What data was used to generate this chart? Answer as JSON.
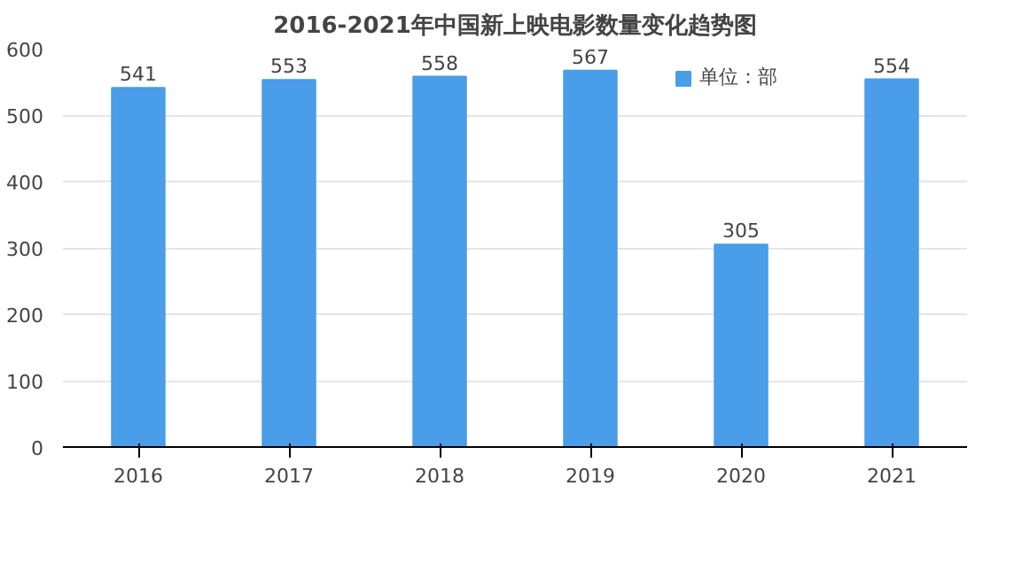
{
  "chart_data": {
    "type": "bar",
    "title": "2016-2021年中国新上映电影数量变化趋势图",
    "categories": [
      "2016",
      "2017",
      "2018",
      "2019",
      "2020",
      "2021"
    ],
    "series": [
      {
        "name": "单位：部",
        "color": "#4a9de8",
        "values": [
          541,
          553,
          558,
          567,
          305,
          554
        ]
      }
    ],
    "ylim": [
      0,
      600
    ],
    "yticks": [
      0,
      100,
      200,
      300,
      400,
      500,
      600
    ],
    "grid": "y",
    "legend": "top",
    "data_labels": true
  }
}
